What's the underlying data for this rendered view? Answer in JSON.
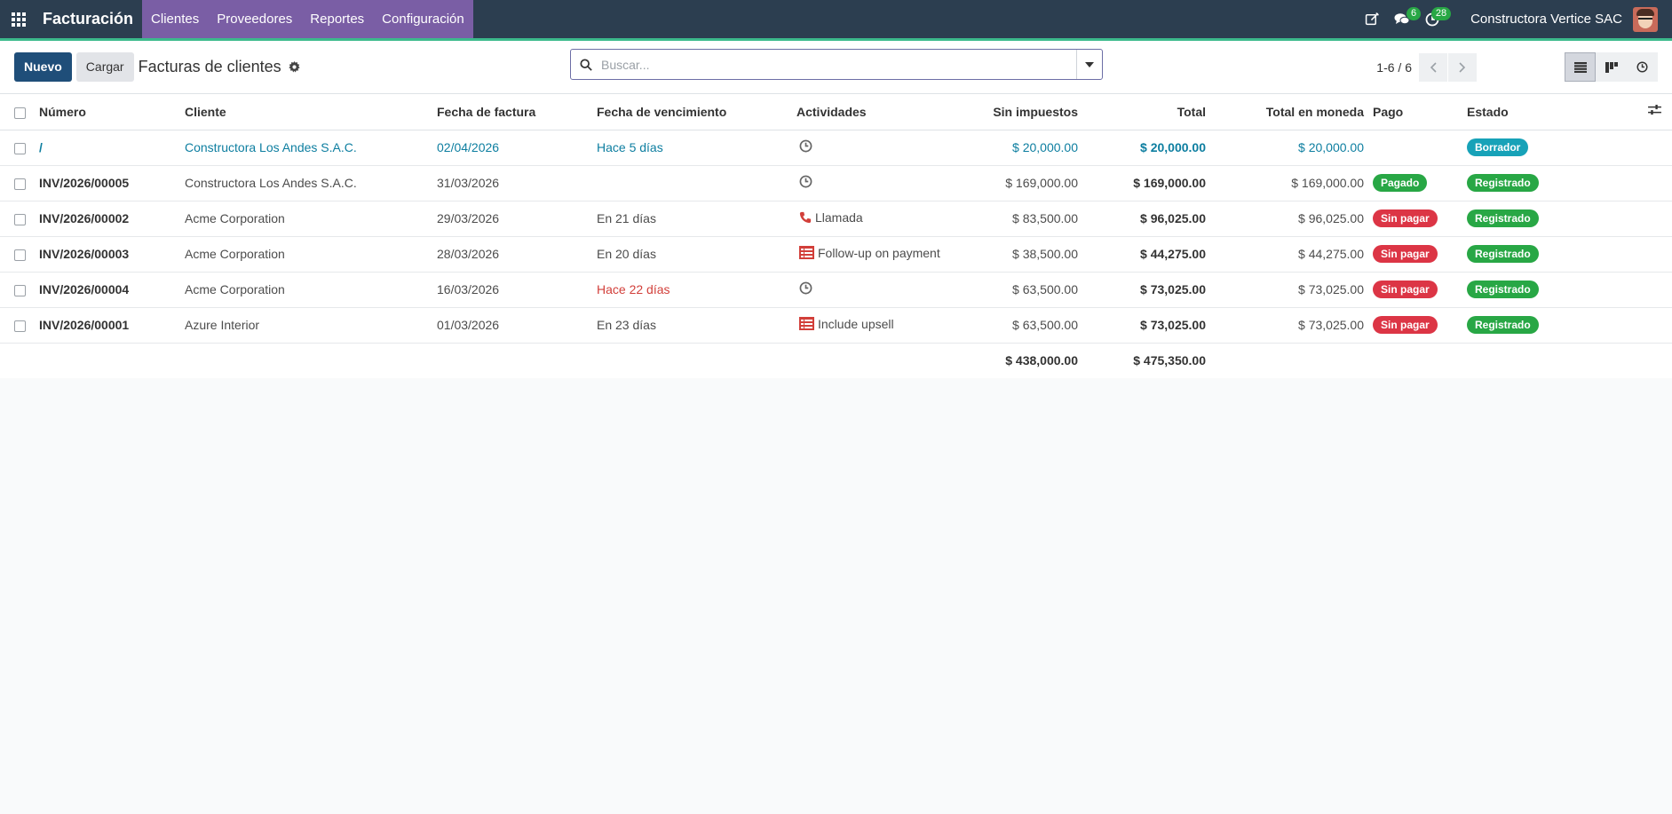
{
  "navbar": {
    "brand": "Facturación",
    "menu": [
      "Clientes",
      "Proveedores",
      "Reportes",
      "Configuración"
    ],
    "messages_count": "6",
    "activities_count": "28",
    "company": "Constructora Vertice SAC"
  },
  "control": {
    "new_label": "Nuevo",
    "upload_label": "Cargar",
    "title": "Facturas de clientes",
    "search_placeholder": "Buscar...",
    "pager": "1-6 / 6"
  },
  "table": {
    "headers": {
      "number": "Número",
      "customer": "Cliente",
      "invoice_date": "Fecha de factura",
      "due_date": "Fecha de vencimiento",
      "activities": "Actividades",
      "untaxed": "Sin impuestos",
      "total": "Total",
      "total_currency": "Total en moneda",
      "payment": "Pago",
      "state": "Estado"
    },
    "rows": [
      {
        "number": "/",
        "customer": "Constructora Los Andes S.A.C.",
        "invoice_date": "02/04/2026",
        "due_date": "Hace 5 días",
        "activity": "",
        "activity_icon": "clock-icon",
        "untaxed": "$ 20,000.00",
        "total": "$ 20,000.00",
        "total_currency": "$ 20,000.00",
        "payment": "",
        "state": "Borrador"
      },
      {
        "number": "INV/2026/00005",
        "customer": "Constructora Los Andes S.A.C.",
        "invoice_date": "31/03/2026",
        "due_date": "",
        "activity": "",
        "activity_icon": "clock-icon",
        "untaxed": "$ 169,000.00",
        "total": "$ 169,000.00",
        "total_currency": "$ 169,000.00",
        "payment": "Pagado",
        "state": "Registrado"
      },
      {
        "number": "INV/2026/00002",
        "customer": "Acme Corporation",
        "invoice_date": "29/03/2026",
        "due_date": "En 21 días",
        "activity": "Llamada",
        "activity_icon": "phone-icon",
        "untaxed": "$ 83,500.00",
        "total": "$ 96,025.00",
        "total_currency": "$ 96,025.00",
        "payment": "Sin pagar",
        "state": "Registrado"
      },
      {
        "number": "INV/2026/00003",
        "customer": "Acme Corporation",
        "invoice_date": "28/03/2026",
        "due_date": "En 20 días",
        "activity": "Follow-up on payment",
        "activity_icon": "tasks-icon",
        "untaxed": "$ 38,500.00",
        "total": "$ 44,275.00",
        "total_currency": "$ 44,275.00",
        "payment": "Sin pagar",
        "state": "Registrado"
      },
      {
        "number": "INV/2026/00004",
        "customer": "Acme Corporation",
        "invoice_date": "16/03/2026",
        "due_date": "Hace 22 días",
        "activity": "",
        "activity_icon": "clock-icon",
        "untaxed": "$ 63,500.00",
        "total": "$ 73,025.00",
        "total_currency": "$ 73,025.00",
        "payment": "Sin pagar",
        "state": "Registrado"
      },
      {
        "number": "INV/2026/00001",
        "customer": "Azure Interior",
        "invoice_date": "01/03/2026",
        "due_date": "En 23 días",
        "activity": "Include upsell",
        "activity_icon": "tasks-icon",
        "untaxed": "$ 63,500.00",
        "total": "$ 73,025.00",
        "total_currency": "$ 73,025.00",
        "payment": "Sin pagar",
        "state": "Registrado"
      }
    ],
    "footer": {
      "untaxed": "$ 438,000.00",
      "total": "$ 475,350.00"
    }
  },
  "colors": {
    "navbar": "#2c3e50",
    "menu_bg": "#7a5ea5",
    "primary": "#1f4e79",
    "link": "#0d7ea0",
    "danger": "#d23f3a",
    "paid": "#28a745",
    "unpaid": "#dc3545",
    "draft": "#17a2b8"
  }
}
